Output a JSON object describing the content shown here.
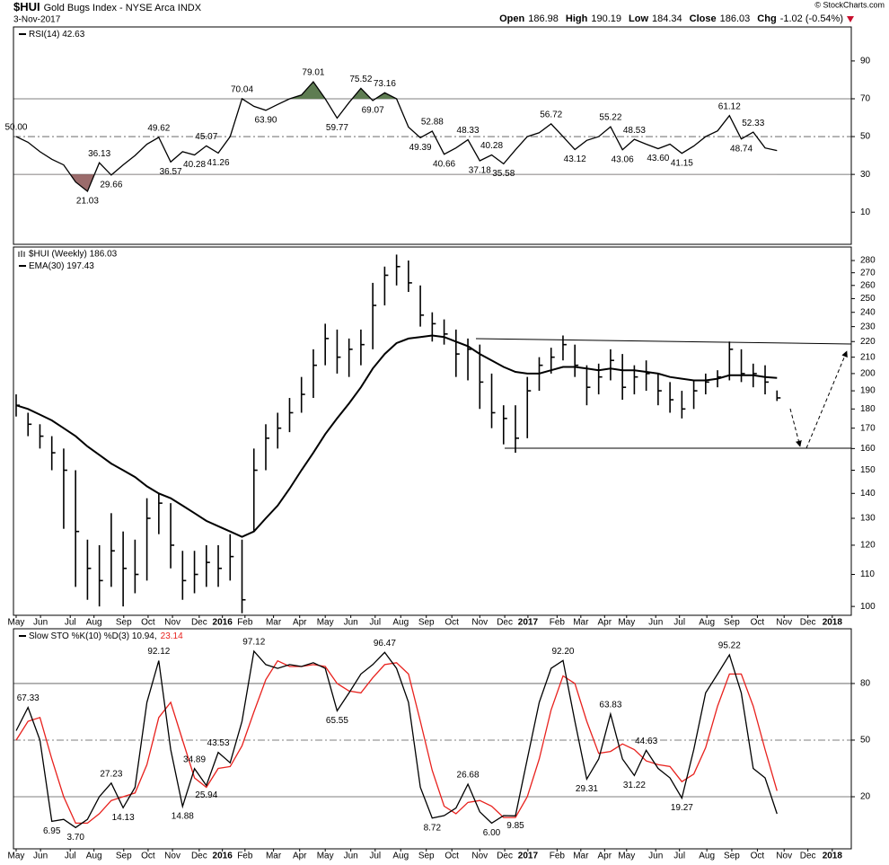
{
  "header": {
    "symbol": "$HUI",
    "name": "Gold Bugs Index - NYSE Arca INDX",
    "date": "3-Nov-2017",
    "credit": "© StockCharts.com",
    "quote": [
      {
        "name": "Open",
        "value": 186.98
      },
      {
        "name": "High",
        "value": 190.19
      },
      {
        "name": "Low",
        "value": 184.34
      },
      {
        "name": "Close",
        "value": 186.03
      },
      {
        "name": "Chg",
        "value": "-1.02 (-0.54%)"
      }
    ]
  },
  "chart_data": [
    {
      "type": "line",
      "x": [
        0,
        2,
        4,
        6,
        8,
        10,
        12,
        14,
        16,
        18,
        20,
        22,
        24,
        26,
        28,
        30,
        32,
        34,
        36,
        38,
        40,
        42,
        44,
        46,
        48,
        50,
        52,
        54,
        56,
        58,
        60,
        62,
        64,
        66,
        68,
        70,
        72,
        74,
        76,
        78,
        80,
        82,
        84,
        86,
        88,
        90,
        92,
        94,
        96,
        98,
        100,
        102,
        104,
        106,
        108,
        110,
        112,
        114,
        116,
        118,
        120,
        122,
        124,
        126,
        128
      ],
      "xlim": [
        -0.45,
        140.5
      ],
      "ylim": [
        -7,
        108
      ],
      "yticks": [
        90,
        70,
        50,
        30,
        10
      ],
      "levels": [
        70,
        50,
        30
      ],
      "level_styles": [
        "solid",
        "dashdot",
        "solid"
      ],
      "fill_above": {
        "level": 70,
        "color": "#5e7c52"
      },
      "fill_below": {
        "level": 30,
        "color": "#9b6b6b"
      },
      "series": [
        {
          "name": "RSI(14) 42.63",
          "color": "#000000",
          "values": [
            50,
            47,
            42,
            38,
            35,
            26,
            21.03,
            36.13,
            29.66,
            35,
            40,
            46,
            49.62,
            36.57,
            42,
            40.28,
            45.07,
            41.26,
            50,
            70.04,
            66,
            63.9,
            67,
            70,
            72,
            79.01,
            70,
            59.77,
            68,
            75.52,
            69.07,
            73.16,
            70,
            55,
            49.39,
            52.88,
            40.66,
            44,
            48.33,
            37.18,
            40.28,
            35.58,
            43,
            50,
            52,
            56.72,
            50,
            43.12,
            48,
            50,
            55.22,
            43.06,
            48.53,
            46,
            43.6,
            46,
            41.15,
            45,
            50,
            53,
            61.12,
            48.74,
            52.33,
            44,
            42.63
          ],
          "value_labels": [
            "50.00",
            null,
            null,
            null,
            null,
            null,
            "21.03",
            "36.13",
            "29.66",
            null,
            null,
            null,
            "49.62",
            "36.57",
            null,
            "40.28",
            "45.07",
            "41.26",
            null,
            "70.04",
            null,
            "63.90",
            null,
            null,
            null,
            "79.01",
            null,
            "59.77",
            null,
            "75.52",
            "69.07",
            "73.16",
            null,
            null,
            "49.39",
            "52.88",
            "40.66",
            null,
            "48.33",
            "37.18",
            "40.28",
            "35.58",
            null,
            null,
            null,
            "56.72",
            null,
            "43.12",
            null,
            null,
            "55.22",
            "43.06",
            "48.53",
            null,
            "43.60",
            null,
            "41.15",
            null,
            null,
            null,
            "61.12",
            "48.74",
            "52.33",
            null,
            null
          ]
        }
      ]
    },
    {
      "type": "hlc",
      "title": "$HUI (Weekly) 186.03",
      "x": [
        0,
        2,
        4,
        6,
        8,
        10,
        12,
        14,
        16,
        18,
        20,
        22,
        24,
        26,
        28,
        30,
        32,
        34,
        36,
        38,
        40,
        42,
        44,
        46,
        48,
        50,
        52,
        54,
        56,
        58,
        60,
        62,
        64,
        66,
        68,
        70,
        72,
        74,
        76,
        78,
        80,
        82,
        84,
        86,
        88,
        90,
        92,
        94,
        96,
        98,
        100,
        102,
        104,
        106,
        108,
        110,
        112,
        114,
        116,
        118,
        120,
        122,
        124,
        126,
        128
      ],
      "xlim": [
        -0.45,
        140.5
      ],
      "log": true,
      "ylim": [
        97.4,
        291.5
      ],
      "yticks": [
        100,
        110,
        120,
        130,
        140,
        150,
        160,
        170,
        180,
        190,
        200,
        210,
        220,
        230,
        240,
        250,
        260,
        270,
        280
      ],
      "color": "#000000",
      "high": [
        188,
        178,
        172,
        166,
        160,
        150,
        122,
        120,
        132,
        125,
        122,
        138,
        140,
        136,
        118,
        118,
        120,
        120,
        124,
        122,
        160,
        172,
        178,
        186,
        198,
        215,
        232,
        228,
        222,
        228,
        262,
        275,
        285,
        280,
        260,
        240,
        235,
        228,
        222,
        218,
        200,
        182,
        182,
        198,
        210,
        216,
        224,
        218,
        205,
        206,
        215,
        212,
        205,
        208,
        200,
        195,
        190,
        196,
        200,
        202,
        220,
        215,
        206,
        205,
        190.19
      ],
      "low": [
        176,
        166,
        160,
        150,
        126,
        106,
        102,
        100,
        106,
        100,
        104,
        108,
        124,
        112,
        102,
        104,
        106,
        106,
        108,
        98,
        125,
        150,
        160,
        168,
        178,
        186,
        205,
        200,
        198,
        205,
        215,
        245,
        260,
        255,
        230,
        220,
        218,
        198,
        196,
        180,
        170,
        162,
        158,
        165,
        190,
        200,
        208,
        198,
        182,
        188,
        196,
        185,
        188,
        190,
        182,
        178,
        175,
        180,
        188,
        192,
        196,
        195,
        192,
        188,
        184.34
      ],
      "close": [
        182,
        172,
        166,
        158,
        150,
        125,
        112,
        108,
        118,
        112,
        110,
        130,
        136,
        120,
        108,
        110,
        114,
        112,
        116,
        102,
        150,
        165,
        170,
        178,
        188,
        205,
        222,
        210,
        215,
        218,
        245,
        268,
        275,
        262,
        238,
        232,
        225,
        212,
        215,
        195,
        178,
        175,
        165,
        190,
        205,
        210,
        218,
        205,
        192,
        198,
        208,
        192,
        198,
        200,
        190,
        185,
        180,
        190,
        195,
        198,
        215,
        200,
        200,
        195,
        186.03
      ],
      "series": [
        {
          "name": "EMA(30) 197.43",
          "color": "#000000",
          "values": [
            182,
            180,
            177,
            174,
            170,
            166,
            161,
            157,
            153,
            150,
            147,
            143,
            140,
            138,
            135,
            132,
            129,
            127,
            125,
            123,
            125,
            130,
            135,
            142,
            150,
            158,
            167,
            175,
            183,
            192,
            203,
            212,
            219,
            222,
            223,
            224,
            223,
            220,
            217,
            212,
            208,
            204,
            201,
            200,
            200,
            202,
            204,
            204,
            203,
            202,
            203,
            202,
            202,
            201,
            200,
            198,
            197,
            196,
            196,
            197,
            199,
            199,
            199,
            198,
            197.43
          ]
        }
      ],
      "xticks": [
        {
          "value": 0,
          "label": "May"
        },
        {
          "value": 4.1,
          "label": "Jun"
        },
        {
          "value": 9.1,
          "label": "Jul"
        },
        {
          "value": 13.1,
          "label": "Aug"
        },
        {
          "value": 18.1,
          "label": "Sep"
        },
        {
          "value": 22.2,
          "label": "Oct"
        },
        {
          "value": 26.3,
          "label": "Nov"
        },
        {
          "value": 30.8,
          "label": "Dec"
        },
        {
          "value": 34.7,
          "label": "2016"
        },
        {
          "value": 38.5,
          "label": "Feb"
        },
        {
          "value": 43.3,
          "label": "Mar"
        },
        {
          "value": 47.7,
          "label": "Apr"
        },
        {
          "value": 52,
          "label": "May"
        },
        {
          "value": 56.3,
          "label": "Jun"
        },
        {
          "value": 60.4,
          "label": "Jul"
        },
        {
          "value": 64.7,
          "label": "Aug"
        },
        {
          "value": 69,
          "label": "Sep"
        },
        {
          "value": 73.3,
          "label": "Oct"
        },
        {
          "value": 78,
          "label": "Nov"
        },
        {
          "value": 82.2,
          "label": "Dec"
        },
        {
          "value": 86.1,
          "label": "2017"
        },
        {
          "value": 91,
          "label": "Feb"
        },
        {
          "value": 95,
          "label": "Mar"
        },
        {
          "value": 99,
          "label": "Apr"
        },
        {
          "value": 102.7,
          "label": "May"
        },
        {
          "value": 107.6,
          "label": "Jun"
        },
        {
          "value": 111.6,
          "label": "Jul"
        },
        {
          "value": 116.2,
          "label": "Aug"
        },
        {
          "value": 120.4,
          "label": "Sep"
        },
        {
          "value": 124.7,
          "label": "Oct"
        },
        {
          "value": 129.2,
          "label": "Nov"
        },
        {
          "value": 133.2,
          "label": "Dec"
        },
        {
          "value": 137.3,
          "label": "2018"
        }
      ]
    },
    {
      "type": "line",
      "x": [
        0,
        2,
        4,
        6,
        8,
        10,
        12,
        14,
        16,
        18,
        20,
        22,
        24,
        26,
        28,
        30,
        32,
        34,
        36,
        38,
        40,
        42,
        44,
        46,
        48,
        50,
        52,
        54,
        56,
        58,
        60,
        62,
        64,
        66,
        68,
        70,
        72,
        74,
        76,
        78,
        80,
        82,
        84,
        86,
        88,
        90,
        92,
        94,
        96,
        98,
        100,
        102,
        104,
        106,
        108,
        110,
        112,
        114,
        116,
        118,
        120,
        122,
        124,
        126,
        128
      ],
      "xlim": [
        -0.45,
        140.5
      ],
      "ylim": [
        -7.6,
        109
      ],
      "yticks": [
        80,
        50,
        20
      ],
      "levels": [
        80,
        50,
        20
      ],
      "level_styles": [
        "solid",
        "dashdot",
        "solid"
      ],
      "series": [
        {
          "name": "Slow STO %K(10) %D(3) 10.94,",
          "color": "#000000",
          "values": [
            55,
            67.33,
            50,
            6.95,
            8,
            3.7,
            8,
            20,
            27.23,
            14.13,
            25,
            70,
            92.12,
            45,
            14.88,
            34.89,
            25.94,
            43.53,
            38,
            60,
            97.12,
            90,
            88,
            90,
            89,
            91,
            88,
            65.55,
            75,
            85,
            90,
            96.47,
            88,
            70,
            25,
            8.72,
            10,
            14,
            26.68,
            12,
            6,
            10,
            9.85,
            40,
            70,
            88,
            92.2,
            60,
            29.31,
            40,
            63.83,
            40,
            31.22,
            44.63,
            35,
            30,
            19.27,
            45,
            75,
            85,
            95.22,
            75,
            35,
            30,
            10.94
          ],
          "value_labels": [
            null,
            "67.33",
            null,
            "6.95",
            null,
            "3.70",
            null,
            null,
            "27.23",
            "14.13",
            null,
            null,
            "92.12",
            null,
            "14.88",
            "34.89",
            "25.94",
            "43.53",
            null,
            null,
            "97.12",
            null,
            null,
            null,
            null,
            null,
            null,
            "65.55",
            null,
            null,
            null,
            "96.47",
            null,
            null,
            null,
            "8.72",
            null,
            null,
            "26.68",
            null,
            "6.00",
            null,
            "9.85",
            null,
            null,
            null,
            "92.20",
            null,
            "29.31",
            null,
            "63.83",
            null,
            "31.22",
            "44.63",
            null,
            null,
            "19.27",
            null,
            null,
            null,
            "95.22",
            null,
            null,
            null,
            null
          ]
        },
        {
          "name": "23.14",
          "color": "#e8211d",
          "values": [
            50,
            60,
            62,
            40,
            20,
            6,
            6,
            11,
            18,
            20,
            22,
            37,
            62,
            70,
            50,
            30,
            25,
            35,
            36,
            47,
            65,
            82,
            92,
            89,
            89,
            90,
            89,
            80,
            76,
            75,
            83,
            90,
            91,
            85,
            60,
            34,
            15,
            11,
            17,
            18,
            15,
            9,
            9,
            20,
            40,
            66,
            84,
            80,
            60,
            43,
            44,
            48,
            45,
            39,
            37,
            36,
            28,
            32,
            46,
            68,
            85,
            85,
            68,
            45,
            23.14
          ]
        }
      ],
      "xticks": [
        {
          "value": 0,
          "label": "May"
        },
        {
          "value": 4.1,
          "label": "Jun"
        },
        {
          "value": 9.1,
          "label": "Jul"
        },
        {
          "value": 13.1,
          "label": "Aug"
        },
        {
          "value": 18.1,
          "label": "Sep"
        },
        {
          "value": 22.2,
          "label": "Oct"
        },
        {
          "value": 26.3,
          "label": "Nov"
        },
        {
          "value": 30.8,
          "label": "Dec"
        },
        {
          "value": 34.7,
          "label": "2016"
        },
        {
          "value": 38.5,
          "label": "Feb"
        },
        {
          "value": 43.3,
          "label": "Mar"
        },
        {
          "value": 47.7,
          "label": "Apr"
        },
        {
          "value": 52,
          "label": "May"
        },
        {
          "value": 56.3,
          "label": "Jun"
        },
        {
          "value": 60.4,
          "label": "Jul"
        },
        {
          "value": 64.7,
          "label": "Aug"
        },
        {
          "value": 69,
          "label": "Sep"
        },
        {
          "value": 73.3,
          "label": "Oct"
        },
        {
          "value": 78,
          "label": "Nov"
        },
        {
          "value": 82.2,
          "label": "Dec"
        },
        {
          "value": 86.1,
          "label": "2017"
        },
        {
          "value": 91,
          "label": "Feb"
        },
        {
          "value": 95,
          "label": "Mar"
        },
        {
          "value": 99,
          "label": "Apr"
        },
        {
          "value": 102.7,
          "label": "May"
        },
        {
          "value": 107.6,
          "label": "Jun"
        },
        {
          "value": 111.6,
          "label": "Jul"
        },
        {
          "value": 116.2,
          "label": "Aug"
        },
        {
          "value": 120.4,
          "label": "Sep"
        },
        {
          "value": 124.7,
          "label": "Oct"
        },
        {
          "value": 129.2,
          "label": "Nov"
        },
        {
          "value": 133.2,
          "label": "Dec"
        },
        {
          "value": 137.3,
          "label": "2018"
        }
      ]
    }
  ]
}
